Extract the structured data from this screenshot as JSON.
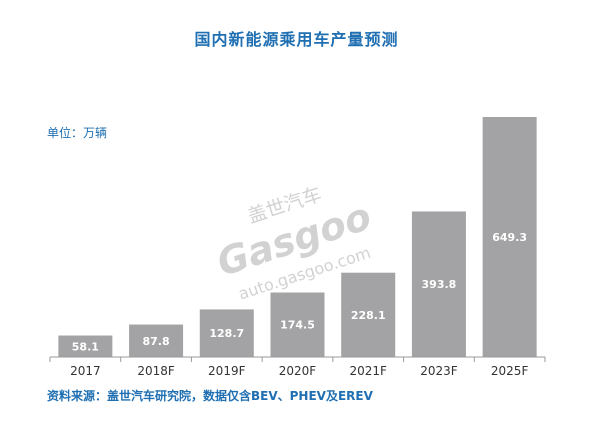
{
  "chart_data": {
    "type": "bar",
    "title": "国内新能源乘用车产量预测",
    "unit": "单位：万辆",
    "categories": [
      "2017",
      "2018F",
      "2019F",
      "2020F",
      "2021F",
      "2023F",
      "2025F"
    ],
    "values": [
      58.1,
      87.8,
      128.7,
      174.5,
      228.1,
      393.8,
      649.3
    ],
    "value_labels": [
      "58.1",
      "87.8",
      "128.7",
      "174.5",
      "228.1",
      "393.8",
      "649.3"
    ],
    "ylim": [
      0,
      649.3
    ],
    "grid": false,
    "legend": "none",
    "bar_color": "#a3a3a5",
    "label_color": "#ffffff",
    "source": "资料来源：盖世汽车研究院，数据仅含BEV、PHEV及EREV"
  },
  "watermark": {
    "line1": "盖世汽车",
    "line2": "Gasgoo",
    "line3": "auto.gasgoo.com"
  }
}
